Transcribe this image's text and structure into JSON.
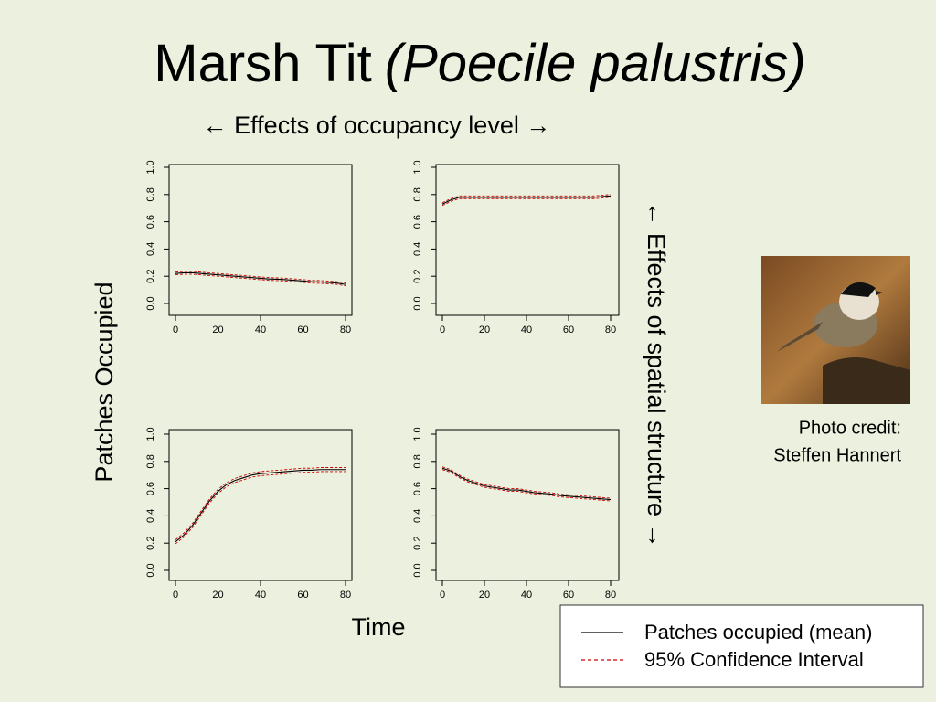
{
  "title_main": "Marsh Tit",
  "title_italic": "(Poecile palustris)",
  "subtitle": "← Effects of occupancy level →",
  "y_axis_label": "Patches Occupied",
  "x_axis_label": "Time",
  "side_label": "← Effects of spatial structure →",
  "photo_credit": [
    "Photo credit:",
    "Steffen Hannert"
  ],
  "legend": [
    {
      "label": "Patches occupied (mean)",
      "color": "#000000",
      "dash": false
    },
    {
      "label": "95% Confidence Interval",
      "color": "#cc0000",
      "dash": true
    }
  ],
  "chart_data": [
    {
      "type": "line",
      "x": [
        0,
        4,
        8,
        12,
        16,
        20,
        24,
        28,
        32,
        36,
        40,
        44,
        48,
        52,
        56,
        60,
        64,
        68,
        72,
        76,
        80
      ],
      "xlim": [
        0,
        80
      ],
      "ylim": [
        0,
        1
      ],
      "xticks": [
        0,
        20,
        40,
        60,
        80
      ],
      "yticks": [
        {
          "value": 0,
          "label": "0.0"
        },
        {
          "value": 0.2,
          "label": "0.2"
        },
        {
          "value": 0.4,
          "label": "0.4"
        },
        {
          "value": 0.6,
          "label": "0.6"
        },
        {
          "value": 0.8,
          "label": "0.8"
        },
        {
          "value": 1,
          "label": "1.0"
        }
      ],
      "series": [
        {
          "color": "#000000",
          "values": [
            0.22,
            0.225,
            0.225,
            0.22,
            0.215,
            0.21,
            0.205,
            0.2,
            0.195,
            0.19,
            0.185,
            0.18,
            0.178,
            0.175,
            0.17,
            0.165,
            0.16,
            0.158,
            0.155,
            0.15,
            0.14
          ]
        },
        {
          "color": "#cc0000",
          "dash": true,
          "values": [
            0.23,
            0.235,
            0.235,
            0.23,
            0.225,
            0.22,
            0.215,
            0.21,
            0.205,
            0.2,
            0.195,
            0.19,
            0.188,
            0.185,
            0.18,
            0.175,
            0.17,
            0.168,
            0.165,
            0.16,
            0.15
          ]
        },
        {
          "color": "#cc0000",
          "dash": true,
          "values": [
            0.21,
            0.215,
            0.215,
            0.21,
            0.205,
            0.2,
            0.195,
            0.19,
            0.185,
            0.18,
            0.175,
            0.17,
            0.168,
            0.165,
            0.16,
            0.155,
            0.15,
            0.148,
            0.145,
            0.14,
            0.13
          ]
        }
      ]
    },
    {
      "type": "line",
      "x": [
        0,
        4,
        8,
        12,
        16,
        20,
        24,
        28,
        32,
        36,
        40,
        44,
        48,
        52,
        56,
        60,
        64,
        68,
        72,
        76,
        80
      ],
      "xlim": [
        0,
        80
      ],
      "ylim": [
        0,
        1
      ],
      "xticks": [
        0,
        20,
        40,
        60,
        80
      ],
      "yticks": [
        {
          "value": 0,
          "label": "0.0"
        },
        {
          "value": 0.2,
          "label": "0.2"
        },
        {
          "value": 0.4,
          "label": "0.4"
        },
        {
          "value": 0.6,
          "label": "0.6"
        },
        {
          "value": 0.8,
          "label": "0.8"
        },
        {
          "value": 1,
          "label": "1.0"
        }
      ],
      "series": [
        {
          "color": "#000000",
          "values": [
            0.73,
            0.76,
            0.78,
            0.78,
            0.78,
            0.78,
            0.78,
            0.78,
            0.78,
            0.78,
            0.78,
            0.78,
            0.78,
            0.78,
            0.78,
            0.78,
            0.78,
            0.78,
            0.78,
            0.785,
            0.79
          ]
        },
        {
          "color": "#cc0000",
          "dash": true,
          "values": [
            0.74,
            0.77,
            0.79,
            0.79,
            0.79,
            0.79,
            0.79,
            0.79,
            0.79,
            0.79,
            0.79,
            0.79,
            0.79,
            0.79,
            0.79,
            0.79,
            0.79,
            0.79,
            0.79,
            0.795,
            0.8
          ]
        },
        {
          "color": "#cc0000",
          "dash": true,
          "values": [
            0.72,
            0.75,
            0.77,
            0.77,
            0.77,
            0.77,
            0.77,
            0.77,
            0.77,
            0.77,
            0.77,
            0.77,
            0.77,
            0.77,
            0.77,
            0.77,
            0.77,
            0.77,
            0.77,
            0.775,
            0.78
          ]
        }
      ]
    },
    {
      "type": "line",
      "x": [
        0,
        4,
        8,
        12,
        16,
        20,
        24,
        28,
        32,
        36,
        40,
        44,
        48,
        52,
        56,
        60,
        64,
        68,
        72,
        76,
        80
      ],
      "xlim": [
        0,
        80
      ],
      "ylim": [
        0,
        1
      ],
      "xticks": [
        0,
        20,
        40,
        60,
        80
      ],
      "yticks": [
        {
          "value": 0,
          "label": "0.0"
        },
        {
          "value": 0.2,
          "label": "0.2"
        },
        {
          "value": 0.4,
          "label": "0.4"
        },
        {
          "value": 0.6,
          "label": "0.6"
        },
        {
          "value": 0.8,
          "label": "0.8"
        },
        {
          "value": 1,
          "label": "1.0"
        }
      ],
      "series": [
        {
          "color": "#000000",
          "values": [
            0.21,
            0.26,
            0.33,
            0.42,
            0.51,
            0.58,
            0.63,
            0.66,
            0.68,
            0.7,
            0.71,
            0.715,
            0.72,
            0.725,
            0.73,
            0.735,
            0.735,
            0.74,
            0.74,
            0.74,
            0.74
          ]
        },
        {
          "color": "#cc0000",
          "dash": true,
          "values": [
            0.225,
            0.275,
            0.345,
            0.435,
            0.525,
            0.595,
            0.645,
            0.675,
            0.695,
            0.715,
            0.725,
            0.73,
            0.735,
            0.74,
            0.745,
            0.75,
            0.75,
            0.755,
            0.755,
            0.755,
            0.755
          ]
        },
        {
          "color": "#cc0000",
          "dash": true,
          "values": [
            0.195,
            0.245,
            0.315,
            0.405,
            0.495,
            0.565,
            0.615,
            0.645,
            0.665,
            0.685,
            0.695,
            0.7,
            0.705,
            0.71,
            0.715,
            0.72,
            0.72,
            0.725,
            0.725,
            0.725,
            0.725
          ]
        }
      ]
    },
    {
      "type": "line",
      "x": [
        0,
        4,
        8,
        12,
        16,
        20,
        24,
        28,
        32,
        36,
        40,
        44,
        48,
        52,
        56,
        60,
        64,
        68,
        72,
        76,
        80
      ],
      "xlim": [
        0,
        80
      ],
      "ylim": [
        0,
        1
      ],
      "xticks": [
        0,
        20,
        40,
        60,
        80
      ],
      "yticks": [
        {
          "value": 0,
          "label": "0.0"
        },
        {
          "value": 0.2,
          "label": "0.2"
        },
        {
          "value": 0.4,
          "label": "0.4"
        },
        {
          "value": 0.6,
          "label": "0.6"
        },
        {
          "value": 0.8,
          "label": "0.8"
        },
        {
          "value": 1,
          "label": "1.0"
        }
      ],
      "series": [
        {
          "color": "#000000",
          "values": [
            0.75,
            0.73,
            0.69,
            0.66,
            0.64,
            0.62,
            0.61,
            0.6,
            0.59,
            0.59,
            0.58,
            0.57,
            0.565,
            0.56,
            0.55,
            0.545,
            0.54,
            0.535,
            0.53,
            0.525,
            0.52
          ]
        },
        {
          "color": "#cc0000",
          "dash": true,
          "values": [
            0.76,
            0.74,
            0.7,
            0.67,
            0.65,
            0.63,
            0.62,
            0.61,
            0.6,
            0.6,
            0.59,
            0.58,
            0.575,
            0.57,
            0.56,
            0.555,
            0.55,
            0.545,
            0.54,
            0.535,
            0.53
          ]
        },
        {
          "color": "#cc0000",
          "dash": true,
          "values": [
            0.74,
            0.72,
            0.68,
            0.65,
            0.63,
            0.61,
            0.6,
            0.59,
            0.58,
            0.58,
            0.57,
            0.56,
            0.555,
            0.55,
            0.54,
            0.535,
            0.53,
            0.525,
            0.52,
            0.515,
            0.51
          ]
        }
      ]
    }
  ]
}
